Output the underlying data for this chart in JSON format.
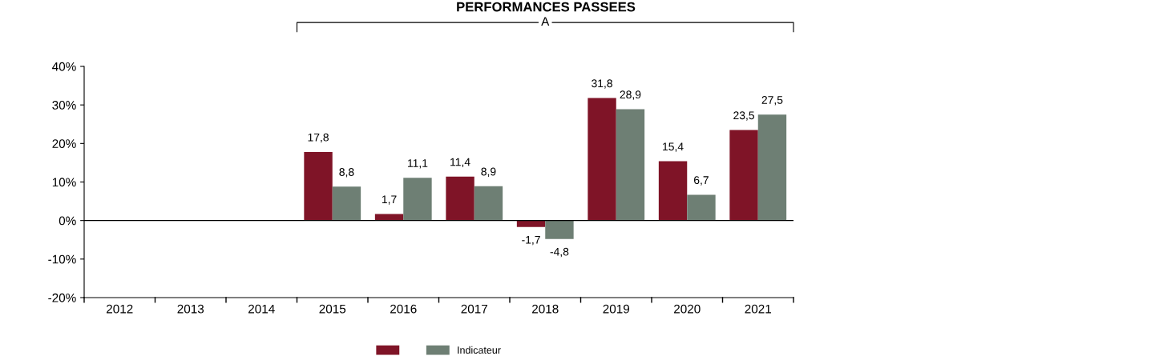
{
  "chart_data": {
    "type": "bar",
    "title": "PERFORMANCES PASSEES",
    "categories": [
      "2012",
      "2013",
      "2014",
      "2015",
      "2016",
      "2017",
      "2018",
      "2019",
      "2020",
      "2021"
    ],
    "series": [
      {
        "color": "#7f1427",
        "values": [
          null,
          null,
          null,
          17.8,
          1.7,
          11.4,
          -1.7,
          31.8,
          15.4,
          23.5
        ],
        "value_labels": [
          null,
          null,
          null,
          "17,8",
          "1,7",
          "11,4",
          "-1,7",
          "31,8",
          "15,4",
          "23,5"
        ]
      },
      {
        "name": "Indicateur",
        "color": "#6e7f74",
        "values": [
          null,
          null,
          null,
          8.8,
          11.1,
          8.9,
          -4.8,
          28.9,
          6.7,
          27.5
        ],
        "value_labels": [
          null,
          null,
          null,
          "8,8",
          "11,1",
          "8,9",
          "-4,8",
          "28,9",
          "6,7",
          "27,5"
        ]
      }
    ],
    "ylim": [
      -20,
      40
    ],
    "yticks": [
      {
        "value": -20,
        "label": "-20%"
      },
      {
        "value": -10,
        "label": "-10%"
      },
      {
        "value": 0,
        "label": "0%"
      },
      {
        "value": 10,
        "label": "10%"
      },
      {
        "value": 20,
        "label": "20%"
      },
      {
        "value": 30,
        "label": "30%"
      },
      {
        "value": 40,
        "label": "40%"
      }
    ],
    "annotations": [
      "A"
    ],
    "legend": "bottom"
  }
}
